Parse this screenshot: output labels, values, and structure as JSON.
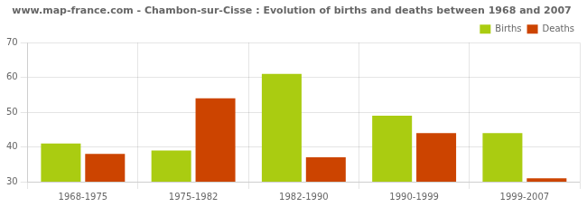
{
  "chart_data": {
    "type": "bar",
    "title": "www.map-france.com - Chambon-sur-Cisse : Evolution of births and deaths between 1968 and 2007",
    "categories": [
      "1968-1975",
      "1975-1982",
      "1982-1990",
      "1990-1999",
      "1999-2007"
    ],
    "series": [
      {
        "name": "Births",
        "color": "#aacc11",
        "values": [
          41,
          39,
          61,
          49,
          44
        ]
      },
      {
        "name": "Deaths",
        "color": "#cc4400",
        "values": [
          38,
          54,
          37,
          44,
          31
        ]
      }
    ],
    "ylim": [
      30,
      70
    ],
    "yticks": [
      30,
      40,
      50,
      60,
      70
    ],
    "grid": true,
    "legend": "upper right"
  }
}
